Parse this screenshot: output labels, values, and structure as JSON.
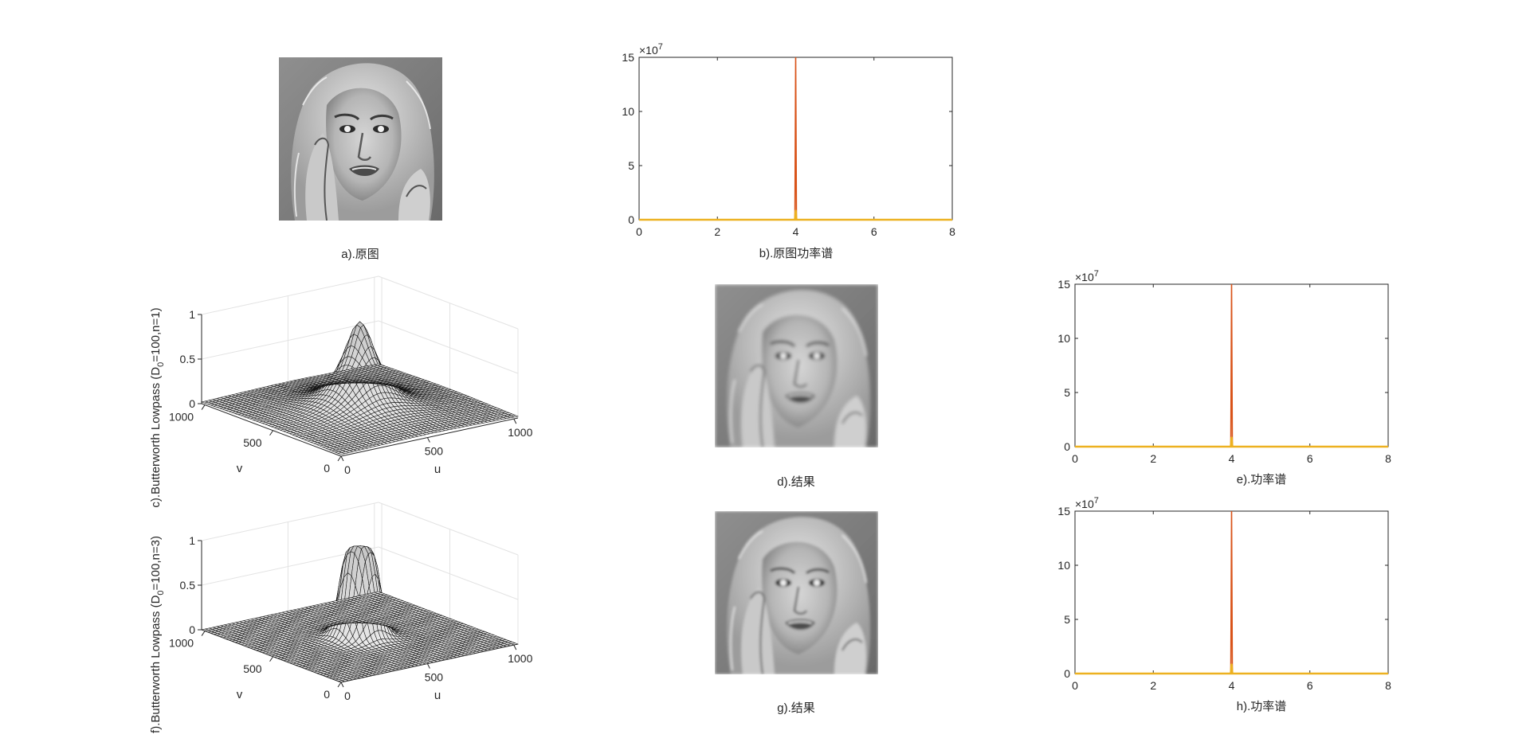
{
  "figure": {
    "captions": {
      "a": "a).原图",
      "b": "b).原图功率谱",
      "d": "d).结果",
      "e": "e).功率谱",
      "g": "g).结果",
      "h": "h).功率谱"
    },
    "surface_titles": {
      "c": "c).Butterworth Lowpass (D0=100,n=1)",
      "f": "f).Butterworth Lowpass (D0=100,n=3)"
    }
  },
  "chart_data": [
    {
      "id": "b",
      "type": "line",
      "title": "b).原图功率谱",
      "xlim": [
        0,
        8
      ],
      "ylim": [
        0,
        15
      ],
      "xticks": [
        "0",
        "2",
        "4",
        "6",
        "8"
      ],
      "yticks": [
        "0",
        "5",
        "10",
        "15"
      ],
      "y_exponent": "×10^7",
      "series": [
        {
          "x": [
            0,
            3.98,
            4.0,
            4.02,
            8
          ],
          "y": [
            0,
            0,
            15,
            0,
            0
          ],
          "color": "#D95319"
        },
        {
          "x": [
            0,
            3.98,
            4.0,
            4.02,
            8
          ],
          "y": [
            0,
            0,
            0.9,
            0,
            0
          ],
          "color": "#EDB120"
        }
      ],
      "grid": false
    },
    {
      "id": "c",
      "type": "surface",
      "title": "c).Butterworth Lowpass (D0=100,n=1)",
      "xlabel": "u",
      "ylabel": "v",
      "xticks": [
        "0",
        "500",
        "1000"
      ],
      "yticks": [
        "0",
        "500",
        "1000"
      ],
      "zticks": [
        "0",
        "0.5",
        "1"
      ],
      "zlim": [
        0,
        1
      ],
      "filter": {
        "D0": 100,
        "n": 1,
        "center": [
          512,
          512
        ],
        "size": 1024
      },
      "grid": true
    },
    {
      "id": "e",
      "type": "line",
      "title": "e).功率谱",
      "xlim": [
        0,
        8
      ],
      "ylim": [
        0,
        15
      ],
      "xticks": [
        "0",
        "2",
        "4",
        "6",
        "8"
      ],
      "yticks": [
        "0",
        "5",
        "10",
        "15"
      ],
      "y_exponent": "×10^7",
      "series": [
        {
          "x": [
            0,
            3.98,
            4.0,
            4.02,
            8
          ],
          "y": [
            0,
            0,
            15,
            0,
            0
          ],
          "color": "#D95319"
        },
        {
          "x": [
            0,
            3.98,
            4.0,
            4.02,
            8
          ],
          "y": [
            0,
            0,
            0.9,
            0,
            0
          ],
          "color": "#EDB120"
        }
      ],
      "grid": false
    },
    {
      "id": "f",
      "type": "surface",
      "title": "f).Butterworth Lowpass (D0=100,n=3)",
      "xlabel": "u",
      "ylabel": "v",
      "xticks": [
        "0",
        "500",
        "1000"
      ],
      "yticks": [
        "0",
        "500",
        "1000"
      ],
      "zticks": [
        "0",
        "0.5",
        "1"
      ],
      "zlim": [
        0,
        1
      ],
      "filter": {
        "D0": 100,
        "n": 3,
        "center": [
          512,
          512
        ],
        "size": 1024
      },
      "grid": true
    },
    {
      "id": "h",
      "type": "line",
      "title": "h).功率谱",
      "xlim": [
        0,
        8
      ],
      "ylim": [
        0,
        15
      ],
      "xticks": [
        "0",
        "2",
        "4",
        "6",
        "8"
      ],
      "yticks": [
        "0",
        "5",
        "10",
        "15"
      ],
      "y_exponent": "×10^7",
      "series": [
        {
          "x": [
            0,
            3.98,
            4.0,
            4.02,
            8
          ],
          "y": [
            0,
            0,
            15,
            0,
            0
          ],
          "color": "#D95319"
        },
        {
          "x": [
            0,
            3.98,
            4.0,
            4.02,
            8
          ],
          "y": [
            0,
            0,
            0.9,
            0,
            0
          ],
          "color": "#EDB120"
        }
      ],
      "grid": false
    }
  ]
}
